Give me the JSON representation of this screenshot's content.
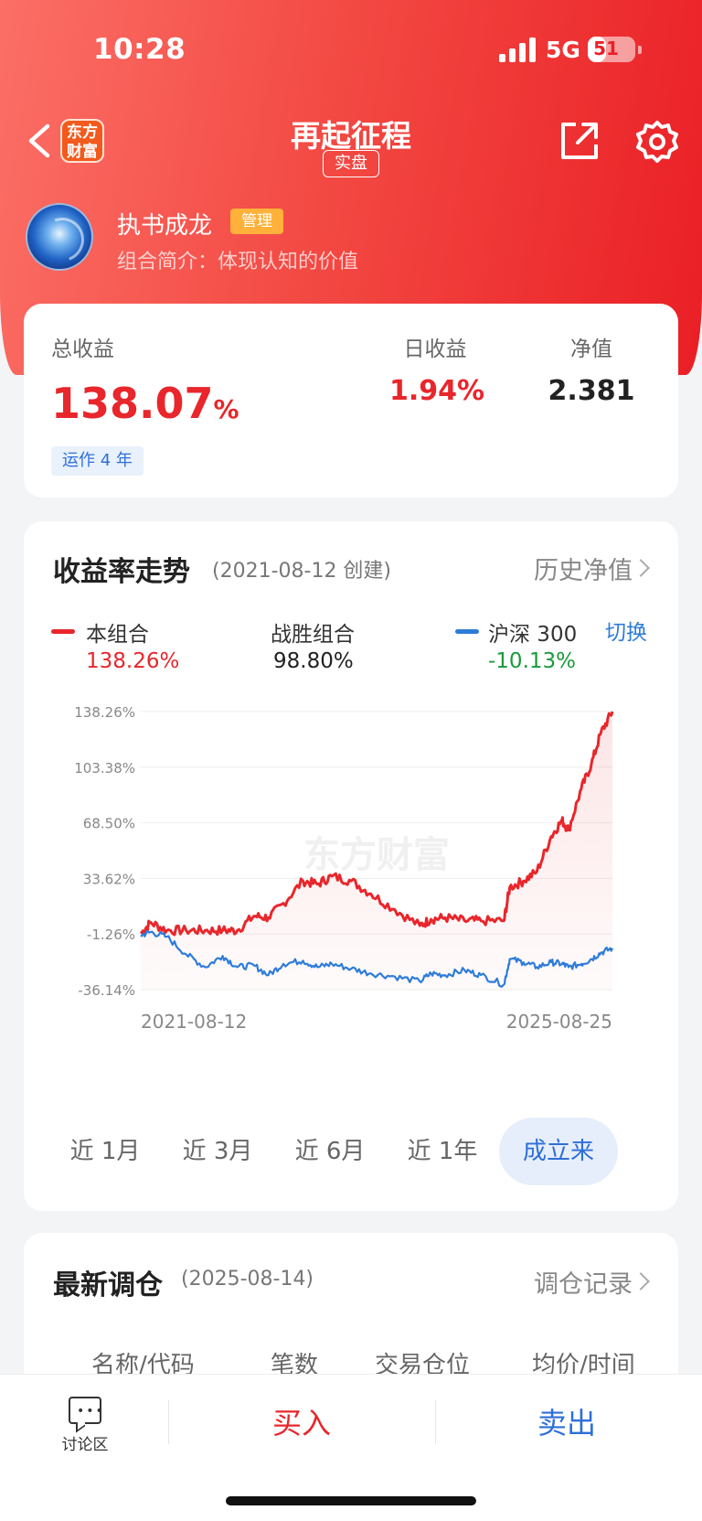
{
  "status": {
    "time": "10:28",
    "network": "5G",
    "battery": "51",
    "battery_level": 0.51
  },
  "nav": {
    "logo_text": "东方财富",
    "title": "再起征程",
    "tag": "实盘"
  },
  "profile": {
    "name": "执书成龙",
    "badge": "管理",
    "desc": "组合简介：体现认知的价值"
  },
  "summary": {
    "total_label": "总收益",
    "total_value": "138.07",
    "total_unit": "%",
    "daily_label": "日收益",
    "daily_value": "1.94%",
    "nav_label": "净值",
    "nav_value": "2.381",
    "operation": "运作 4 年"
  },
  "trend": {
    "title": "收益率走势",
    "subtitle": "(2021-08-12 创建)",
    "link": "历史净值",
    "switch_label": "切换",
    "legend": [
      {
        "name": "本组合",
        "value": "138.26%",
        "color": "#e8262b"
      },
      {
        "name": "战胜组合",
        "value": "98.80%",
        "color": "#222222"
      },
      {
        "name": "沪深 300",
        "value": "-10.13%",
        "color": "#2e7cd9"
      }
    ],
    "periods": [
      "近 1月",
      "近 3月",
      "近 6月",
      "近 1年",
      "成立来"
    ],
    "active_period": 4
  },
  "chart_data": {
    "type": "line",
    "watermark": "东方财富",
    "x_start": "2021-08-12",
    "x_end": "2025-08-25",
    "y_ticks": [
      "138.26%",
      "103.38%",
      "68.50%",
      "33.62%",
      "-1.26%",
      "-36.14%"
    ],
    "y_tick_values": [
      138.26,
      103.38,
      68.5,
      33.62,
      -1.26,
      -36.14
    ],
    "ylim": [
      -36.14,
      138.26
    ],
    "x": [
      "2021-08-12",
      "2021-09-12",
      "2021-11-01",
      "2022-01-01",
      "2022-03-01",
      "2022-04-25",
      "2022-06-10",
      "2022-08-01",
      "2022-09-15",
      "2022-11-01",
      "2023-01-01",
      "2023-02-15",
      "2023-04-01",
      "2023-06-01",
      "2023-08-01",
      "2023-10-15",
      "2024-01-01",
      "2024-02-05",
      "2024-03-20",
      "2024-05-20",
      "2024-07-10",
      "2024-09-20",
      "2024-10-08",
      "2024-11-20",
      "2025-01-01",
      "2025-02-15",
      "2025-03-20",
      "2025-04-10",
      "2025-05-20",
      "2025-06-20",
      "2025-07-20",
      "2025-08-25"
    ],
    "series": [
      {
        "name": "本组合",
        "color": "#e8262b",
        "values": [
          -1.0,
          6.0,
          1.0,
          1.0,
          1.0,
          1.0,
          1.0,
          10.0,
          9.0,
          18.0,
          32.0,
          30.0,
          35.0,
          32.0,
          24.0,
          14.0,
          4.0,
          8.0,
          9.0,
          7.0,
          7.0,
          7.0,
          28.0,
          32.0,
          38.0,
          60.0,
          70.0,
          64.0,
          90.0,
          105.0,
          125.0,
          138.26
        ]
      },
      {
        "name": "沪深 300",
        "color": "#2e7cd9",
        "values": [
          -2.0,
          0.0,
          -3.0,
          -14.0,
          -22.0,
          -15.0,
          -22.0,
          -21.0,
          -27.0,
          -20.0,
          -18.0,
          -22.0,
          -20.0,
          -23.0,
          -26.0,
          -28.0,
          -31.0,
          -26.0,
          -27.0,
          -24.0,
          -27.0,
          -33.0,
          -17.0,
          -19.0,
          -22.0,
          -19.0,
          -20.0,
          -22.0,
          -20.0,
          -17.0,
          -13.0,
          -10.13
        ]
      }
    ]
  },
  "rebalance": {
    "title": "最新调仓",
    "subtitle": "(2025-08-14)",
    "link": "调仓记录",
    "columns": [
      "名称/代码",
      "笔数",
      "交易仓位",
      "均价/时间"
    ]
  },
  "bottom": {
    "discuss": "讨论区",
    "buy": "买入",
    "sell": "卖出"
  }
}
